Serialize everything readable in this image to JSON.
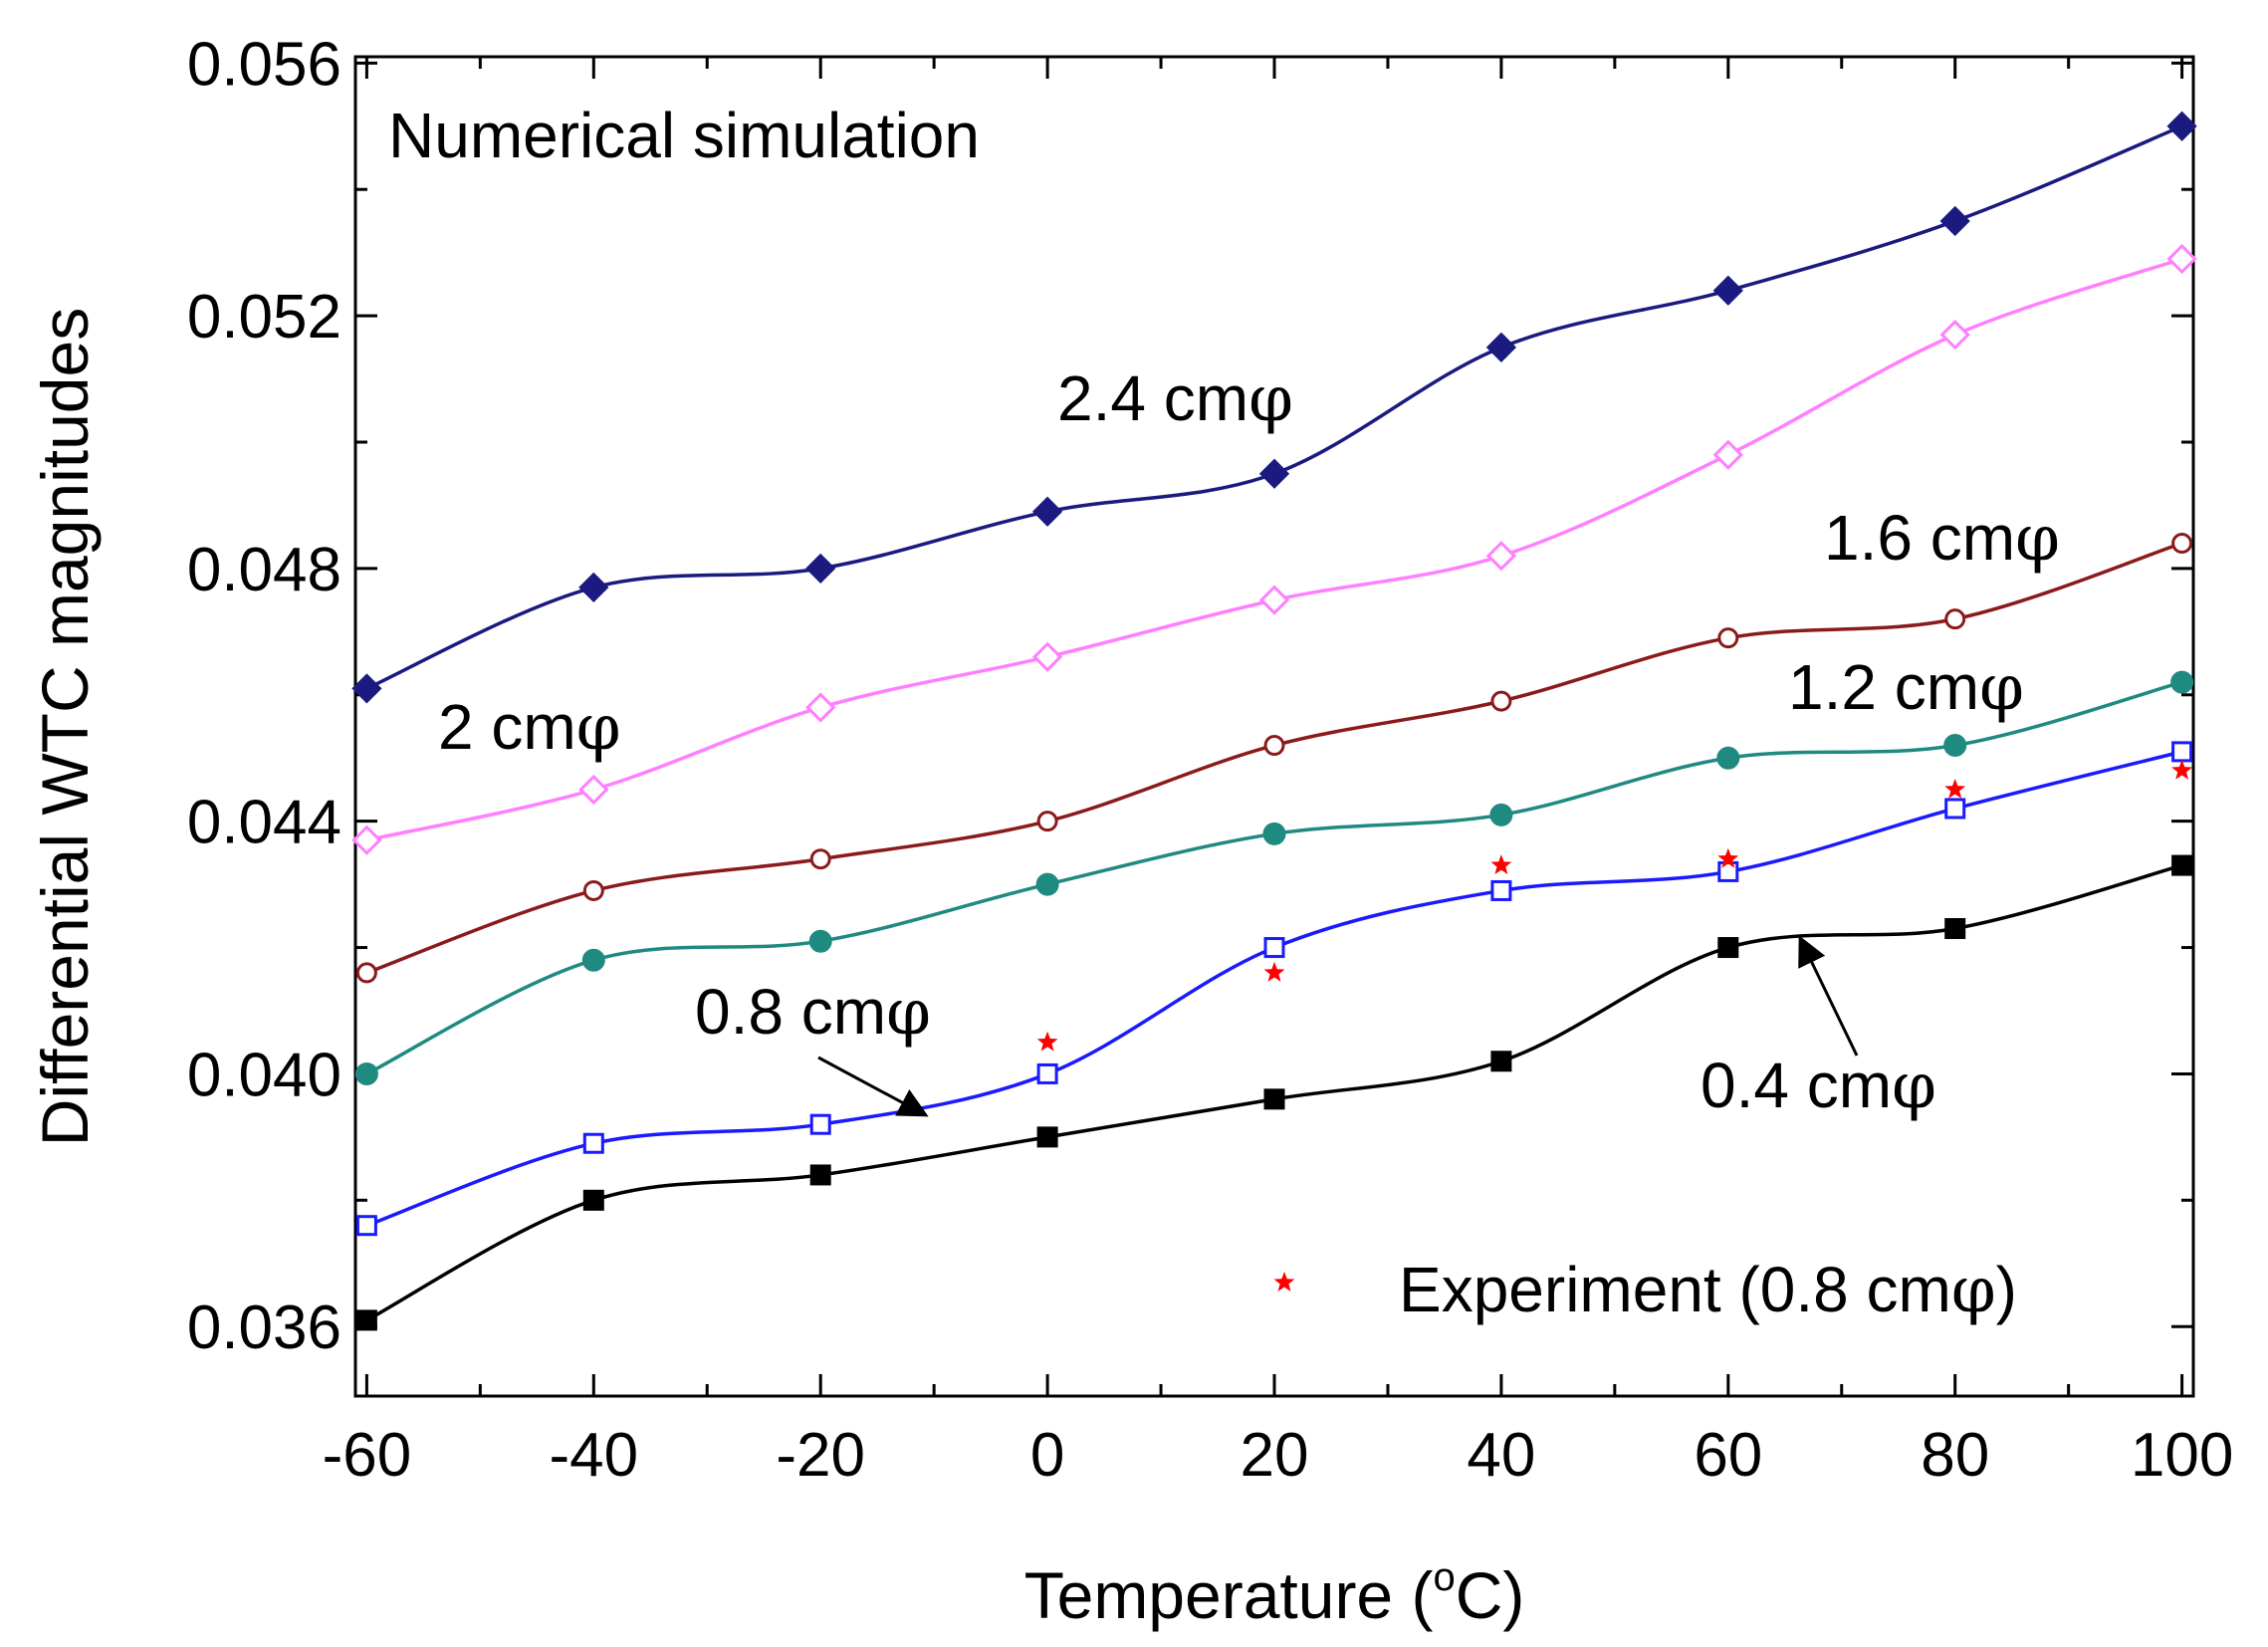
{
  "chart_data": {
    "type": "line",
    "title": "",
    "xlabel": "Temperature (°C)",
    "xlabel_parts": {
      "main": "Temperature (",
      "sup": "o",
      "unit": "C)"
    },
    "ylabel": "Differential WTC magnitudes",
    "annotation": "Numerical simulation",
    "xlim": [
      -61,
      101
    ],
    "ylim": [
      0.0349,
      0.0561
    ],
    "x_ticks": [
      -60,
      -40,
      -20,
      0,
      20,
      40,
      60,
      80,
      100
    ],
    "x_tick_labels": [
      "-60",
      "-40",
      "-20",
      "0",
      "20",
      "40",
      "60",
      "80",
      "100"
    ],
    "y_ticks": [
      0.036,
      0.04,
      0.044,
      0.048,
      0.052,
      0.056
    ],
    "y_tick_labels": [
      "0.036",
      "0.040",
      "0.044",
      "0.048",
      "0.052",
      "0.056"
    ],
    "x": [
      -60,
      -40,
      -20,
      0,
      20,
      40,
      60,
      80,
      100
    ],
    "series": [
      {
        "name": "2.4 cmφ",
        "label": "2.4 cm",
        "label_symbol": "φ",
        "color": "#1a1a80",
        "marker": "diamond",
        "filled": true,
        "values": [
          0.0461,
          0.0477,
          0.048,
          0.0489,
          0.0495,
          0.0515,
          0.0524,
          0.0535,
          0.055
        ]
      },
      {
        "name": "2 cmφ",
        "label": "2 cm",
        "label_symbol": "φ",
        "color": "#ff7fff",
        "marker": "diamond",
        "filled": false,
        "values": [
          0.0437,
          0.0445,
          0.0458,
          0.0466,
          0.0475,
          0.0482,
          0.0498,
          0.0517,
          0.0529
        ]
      },
      {
        "name": "1.6 cmφ",
        "label": "1.6 cm",
        "label_symbol": "φ",
        "color": "#8b1a1a",
        "marker": "circle",
        "filled": false,
        "values": [
          0.0416,
          0.0429,
          0.0434,
          0.044,
          0.0452,
          0.0459,
          0.0469,
          0.0472,
          0.0484
        ]
      },
      {
        "name": "1.2 cmφ",
        "label": "1.2 cm",
        "label_symbol": "φ",
        "color": "#1f8a80",
        "marker": "circle",
        "filled": true,
        "values": [
          0.04,
          0.0418,
          0.0421,
          0.043,
          0.0438,
          0.0441,
          0.045,
          0.0452,
          0.0462
        ]
      },
      {
        "name": "0.8 cmφ",
        "label": "0.8 cm",
        "label_symbol": "φ",
        "color": "#1a1aff",
        "marker": "square",
        "filled": false,
        "values": [
          0.0376,
          0.0389,
          0.0392,
          0.04,
          0.042,
          0.0429,
          0.0432,
          0.0442,
          0.0451
        ]
      },
      {
        "name": "0.4 cmφ",
        "label": "0.4 cm",
        "label_symbol": "φ",
        "color": "#000000",
        "marker": "square",
        "filled": true,
        "values": [
          0.0361,
          0.038,
          0.0384,
          0.039,
          0.0396,
          0.0402,
          0.042,
          0.0423,
          0.0433
        ]
      }
    ],
    "experiment": {
      "name": "Experiment (0.8 cmφ)",
      "label": "Experiment (0.8 cm",
      "label_symbol": "φ",
      "label_close": ")",
      "color": "#ff0000",
      "marker": "star",
      "x": [
        0,
        20,
        40,
        60,
        80,
        100
      ],
      "y": [
        0.0405,
        0.0416,
        0.0433,
        0.0434,
        0.0445,
        0.0448
      ]
    },
    "grid": false,
    "legend_position": "bottom-right"
  }
}
